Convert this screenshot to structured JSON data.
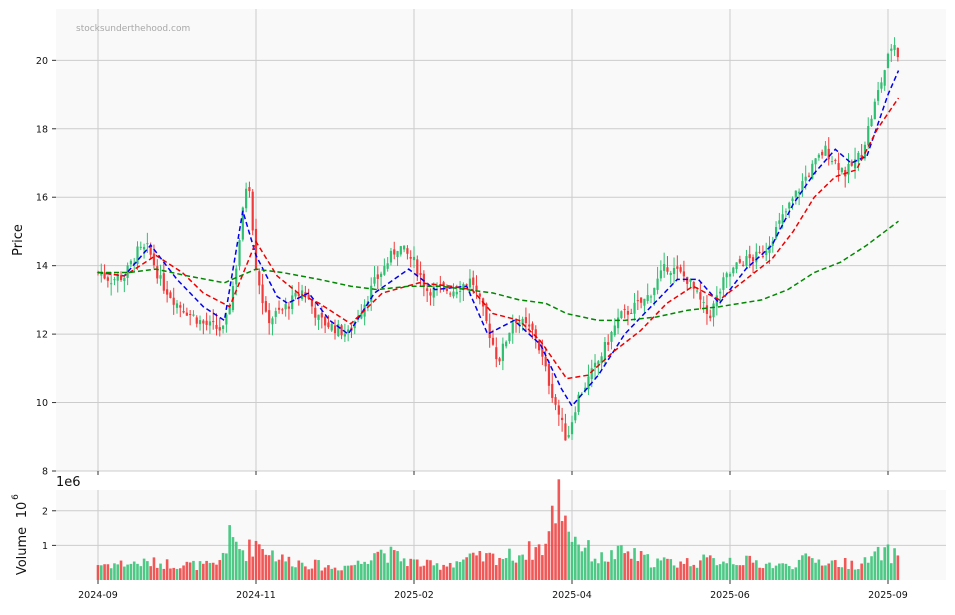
{
  "watermark": "stocksunderthehood.com",
  "chart_data": [
    {
      "type": "candlestick",
      "ylabel": "Price",
      "ylim": [
        8,
        21.5
      ],
      "y_ticks": [
        8,
        10,
        12,
        14,
        16,
        18,
        20
      ],
      "x_ticks": [
        "2024-09",
        "2024-11",
        "2025-02",
        "2025-04",
        "2025-06",
        "2025-09"
      ],
      "x_tick_positions_day": [
        0,
        60,
        120,
        180,
        240,
        300
      ],
      "grid": true,
      "colors": {
        "up": "#2fbf71",
        "down": "#ef3b3b",
        "ma_blue": "#0000ee",
        "ma_red": "#ee0000",
        "ma_green": "#008800"
      },
      "close_anchors": [
        [
          0,
          13.8
        ],
        [
          5,
          13.6
        ],
        [
          10,
          13.7
        ],
        [
          15,
          14.4
        ],
        [
          19,
          14.5
        ],
        [
          24,
          13.5
        ],
        [
          30,
          12.9
        ],
        [
          40,
          12.3
        ],
        [
          48,
          12.1
        ],
        [
          52,
          13.7
        ],
        [
          57,
          16.8
        ],
        [
          60,
          14.0
        ],
        [
          64,
          12.4
        ],
        [
          70,
          12.7
        ],
        [
          78,
          13.3
        ],
        [
          84,
          12.4
        ],
        [
          95,
          12.0
        ],
        [
          105,
          13.5
        ],
        [
          114,
          14.6
        ],
        [
          120,
          14.1
        ],
        [
          125,
          13.3
        ],
        [
          135,
          13.3
        ],
        [
          142,
          13.6
        ],
        [
          146,
          12.7
        ],
        [
          152,
          11.2
        ],
        [
          158,
          12.5
        ],
        [
          166,
          12.0
        ],
        [
          172,
          10.4
        ],
        [
          178,
          8.9
        ],
        [
          182,
          10.1
        ],
        [
          190,
          11.2
        ],
        [
          198,
          12.5
        ],
        [
          208,
          13.0
        ],
        [
          216,
          14.0
        ],
        [
          224,
          13.6
        ],
        [
          232,
          12.5
        ],
        [
          238,
          13.6
        ],
        [
          244,
          14.1
        ],
        [
          252,
          14.3
        ],
        [
          260,
          15.4
        ],
        [
          268,
          16.5
        ],
        [
          276,
          17.4
        ],
        [
          284,
          16.7
        ],
        [
          290,
          17.3
        ],
        [
          296,
          19.0
        ],
        [
          302,
          20.6
        ],
        [
          304,
          20.1
        ]
      ],
      "series": [
        {
          "name": "",
          "type": "line",
          "color": "#0000ee",
          "window": 10,
          "values": [
            [
              0,
              13.8
            ],
            [
              10,
              13.7
            ],
            [
              20,
              14.6
            ],
            [
              30,
              13.6
            ],
            [
              40,
              12.8
            ],
            [
              48,
              12.4
            ],
            [
              55,
              15.6
            ],
            [
              60,
              14.3
            ],
            [
              68,
              13.1
            ],
            [
              72,
              12.9
            ],
            [
              80,
              13.2
            ],
            [
              88,
              12.4
            ],
            [
              95,
              12.0
            ],
            [
              105,
              13.2
            ],
            [
              118,
              13.9
            ],
            [
              128,
              13.3
            ],
            [
              140,
              13.4
            ],
            [
              148,
              12.0
            ],
            [
              158,
              12.4
            ],
            [
              168,
              11.7
            ],
            [
              176,
              10.4
            ],
            [
              180,
              9.9
            ],
            [
              190,
              10.8
            ],
            [
              200,
              12.0
            ],
            [
              210,
              12.8
            ],
            [
              220,
              13.6
            ],
            [
              228,
              13.6
            ],
            [
              236,
              12.9
            ],
            [
              246,
              13.9
            ],
            [
              256,
              14.6
            ],
            [
              264,
              15.8
            ],
            [
              272,
              16.7
            ],
            [
              280,
              17.4
            ],
            [
              286,
              17.0
            ],
            [
              292,
              17.2
            ],
            [
              300,
              19.0
            ],
            [
              304,
              19.7
            ]
          ]
        },
        {
          "name": "",
          "type": "line",
          "color": "#ee0000",
          "window": 20,
          "values": [
            [
              0,
              13.8
            ],
            [
              10,
              13.7
            ],
            [
              22,
              14.3
            ],
            [
              32,
              13.8
            ],
            [
              40,
              13.2
            ],
            [
              50,
              12.8
            ],
            [
              60,
              14.7
            ],
            [
              68,
              13.7
            ],
            [
              76,
              13.2
            ],
            [
              84,
              12.9
            ],
            [
              96,
              12.3
            ],
            [
              108,
              13.2
            ],
            [
              122,
              13.5
            ],
            [
              134,
              13.4
            ],
            [
              142,
              13.3
            ],
            [
              150,
              12.6
            ],
            [
              160,
              12.4
            ],
            [
              168,
              11.8
            ],
            [
              178,
              10.7
            ],
            [
              186,
              10.8
            ],
            [
              196,
              11.5
            ],
            [
              206,
              12.1
            ],
            [
              216,
              12.9
            ],
            [
              226,
              13.4
            ],
            [
              236,
              13.0
            ],
            [
              246,
              13.6
            ],
            [
              256,
              14.2
            ],
            [
              264,
              15.0
            ],
            [
              272,
              16.0
            ],
            [
              280,
              16.6
            ],
            [
              288,
              16.8
            ],
            [
              296,
              18.0
            ],
            [
              304,
              18.9
            ]
          ]
        },
        {
          "name": "",
          "type": "line",
          "color": "#008800",
          "window": 100,
          "values": [
            [
              0,
              13.8
            ],
            [
              12,
              13.8
            ],
            [
              22,
              13.9
            ],
            [
              34,
              13.7
            ],
            [
              48,
              13.5
            ],
            [
              60,
              13.9
            ],
            [
              70,
              13.8
            ],
            [
              84,
              13.6
            ],
            [
              96,
              13.4
            ],
            [
              106,
              13.3
            ],
            [
              118,
              13.4
            ],
            [
              130,
              13.4
            ],
            [
              140,
              13.3
            ],
            [
              150,
              13.2
            ],
            [
              160,
              13.0
            ],
            [
              170,
              12.9
            ],
            [
              178,
              12.6
            ],
            [
              190,
              12.4
            ],
            [
              200,
              12.4
            ],
            [
              212,
              12.5
            ],
            [
              224,
              12.7
            ],
            [
              236,
              12.8
            ],
            [
              252,
              13.0
            ],
            [
              262,
              13.3
            ],
            [
              272,
              13.8
            ],
            [
              282,
              14.1
            ],
            [
              292,
              14.6
            ],
            [
              304,
              15.3
            ]
          ]
        }
      ]
    },
    {
      "type": "bar",
      "ylabel": "Volume",
      "yscale_label": "1e6",
      "yscale_exponent": "10",
      "yscale_power": "6",
      "ylim": [
        0,
        2.6
      ],
      "y_ticks": [
        1,
        2
      ],
      "grid": true,
      "note": "volume bars coloured by candle direction",
      "volume_anchors": [
        [
          0,
          0.45
        ],
        [
          20,
          0.5
        ],
        [
          45,
          0.4
        ],
        [
          50,
          1.2
        ],
        [
          56,
          0.8
        ],
        [
          60,
          1.1
        ],
        [
          70,
          0.6
        ],
        [
          90,
          0.35
        ],
        [
          100,
          0.5
        ],
        [
          105,
          0.9
        ],
        [
          118,
          0.55
        ],
        [
          128,
          0.4
        ],
        [
          140,
          0.6
        ],
        [
          158,
          0.7
        ],
        [
          170,
          1.0
        ],
        [
          175,
          2.5
        ],
        [
          180,
          1.3
        ],
        [
          190,
          0.6
        ],
        [
          200,
          0.8
        ],
        [
          210,
          0.55
        ],
        [
          220,
          0.5
        ],
        [
          240,
          0.6
        ],
        [
          260,
          0.4
        ],
        [
          270,
          0.6
        ],
        [
          280,
          0.5
        ],
        [
          290,
          0.45
        ],
        [
          298,
          0.8
        ],
        [
          304,
          0.7
        ]
      ]
    }
  ]
}
